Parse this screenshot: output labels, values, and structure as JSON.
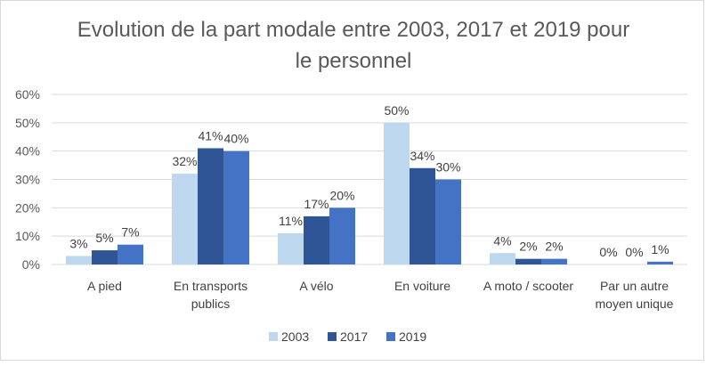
{
  "chart_data": {
    "type": "bar",
    "title": "Evolution de la part modale entre 2003, 2017 et 2019 pour le personnel",
    "title_lines": [
      "Evolution de la part modale entre 2003, 2017 et 2019 pour",
      "le personnel"
    ],
    "categories": [
      "A pied",
      "En transports publics",
      "A vélo",
      "En voiture",
      "A moto / scooter",
      "Par un autre moyen unique"
    ],
    "category_lines": [
      [
        "A pied"
      ],
      [
        "En transports",
        "publics"
      ],
      [
        "A vélo"
      ],
      [
        "En voiture"
      ],
      [
        "A moto / scooter"
      ],
      [
        "Par un autre",
        "moyen unique"
      ]
    ],
    "series": [
      {
        "name": "2003",
        "color": "#bdd7ee",
        "values": [
          3,
          32,
          11,
          50,
          4,
          0
        ],
        "labels": [
          "3%",
          "32%",
          "11%",
          "50%",
          "4%",
          "0%"
        ]
      },
      {
        "name": "2017",
        "color": "#2f5597",
        "values": [
          5,
          41,
          17,
          34,
          2,
          0
        ],
        "labels": [
          "5%",
          "41%",
          "17%",
          "34%",
          "2%",
          "0%"
        ]
      },
      {
        "name": "2019",
        "color": "#4472c4",
        "values": [
          7,
          40,
          20,
          30,
          2,
          1
        ],
        "labels": [
          "7%",
          "40%",
          "20%",
          "30%",
          "2%",
          "1%"
        ]
      }
    ],
    "ylim": [
      0,
      60
    ],
    "yticks": [
      "0%",
      "10%",
      "20%",
      "30%",
      "40%",
      "50%",
      "60%"
    ],
    "grid": true,
    "legend_position": "bottom",
    "xlabel": "",
    "ylabel": ""
  }
}
